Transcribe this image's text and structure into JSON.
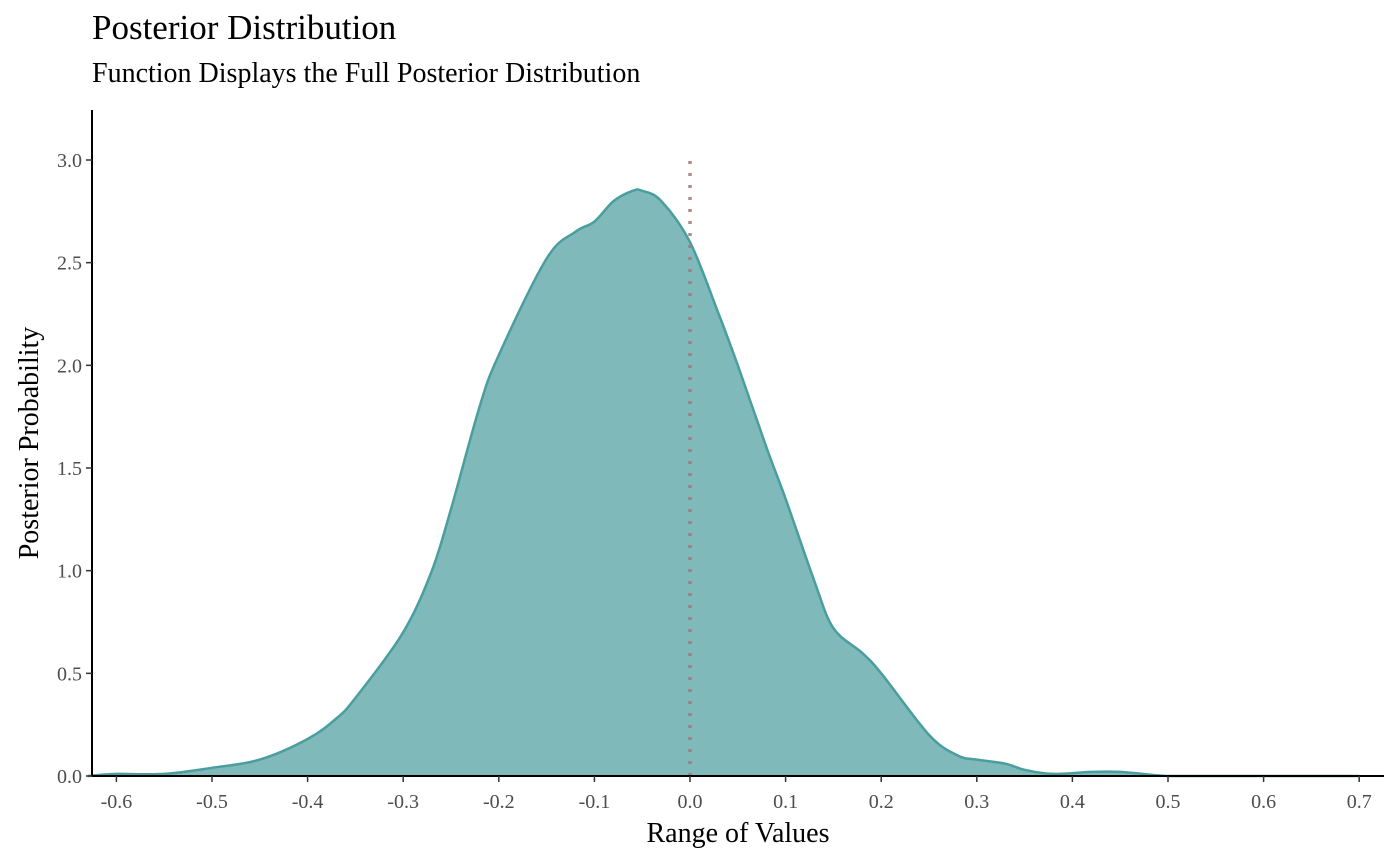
{
  "chart_data": {
    "type": "area",
    "title": "Posterior Distribution",
    "subtitle": "Function Displays the Full Posterior Distribution",
    "xlabel": "Range of Values",
    "ylabel": "Posterior Probability",
    "xlim": [
      -0.63,
      0.73
    ],
    "ylim": [
      0,
      3.25
    ],
    "x_ticks": [
      -0.6,
      -0.5,
      -0.4,
      -0.3,
      -0.2,
      -0.1,
      0.0,
      0.1,
      0.2,
      0.3,
      0.4,
      0.5,
      0.6,
      0.7
    ],
    "x_tick_labels": [
      "-0.6",
      "-0.5",
      "-0.4",
      "-0.3",
      "-0.2",
      "-0.1",
      "0.0",
      "0.1",
      "0.2",
      "0.3",
      "0.4",
      "0.5",
      "0.6",
      "0.7"
    ],
    "y_ticks": [
      0.0,
      0.5,
      1.0,
      1.5,
      2.0,
      2.5,
      3.0
    ],
    "y_tick_labels": [
      "0.0",
      "0.5",
      "1.0",
      "1.5",
      "2.0",
      "2.5",
      "3.0"
    ],
    "grid": false,
    "legend": "none",
    "fill_color": "#7fb9b9",
    "line_color": "#4a9e9e",
    "reference_line": {
      "x": 0.0,
      "y_range": [
        0,
        3.0
      ],
      "color": "#a07878",
      "style": "dotted"
    },
    "density": {
      "x": [
        -0.63,
        -0.6,
        -0.55,
        -0.5,
        -0.45,
        -0.4,
        -0.37,
        -0.35,
        -0.3,
        -0.27,
        -0.25,
        -0.22,
        -0.2,
        -0.15,
        -0.12,
        -0.1,
        -0.08,
        -0.06,
        -0.05,
        -0.03,
        0.0,
        0.03,
        0.05,
        0.08,
        0.1,
        0.13,
        0.15,
        0.18,
        0.2,
        0.25,
        0.28,
        0.3,
        0.33,
        0.35,
        0.38,
        0.42,
        0.45,
        0.5,
        0.55,
        0.6,
        0.7
      ],
      "y": [
        0.0,
        0.01,
        0.01,
        0.04,
        0.08,
        0.18,
        0.28,
        0.38,
        0.7,
        1.0,
        1.3,
        1.8,
        2.05,
        2.52,
        2.65,
        2.7,
        2.8,
        2.85,
        2.85,
        2.8,
        2.6,
        2.25,
        2.0,
        1.6,
        1.35,
        0.95,
        0.72,
        0.6,
        0.5,
        0.2,
        0.1,
        0.08,
        0.06,
        0.03,
        0.01,
        0.02,
        0.02,
        0.0,
        0.0,
        0.0,
        0.0
      ]
    }
  }
}
